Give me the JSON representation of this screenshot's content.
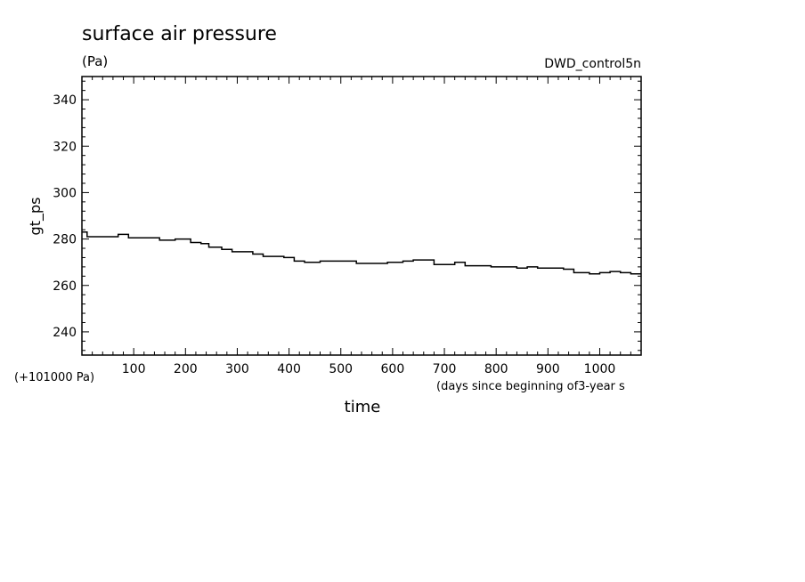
{
  "chart_data": {
    "type": "line",
    "title": "surface air pressure",
    "units": "(Pa)",
    "dataset": "DWD_control5n",
    "ylabel": "gt_ps",
    "xlabel": "time",
    "x_units": "(days since beginning of3-year s",
    "y_offset_label": "(+101000 Pa)",
    "xlim": [
      0,
      1080
    ],
    "ylim": [
      230,
      350
    ],
    "x_ticks": [
      100,
      200,
      300,
      400,
      500,
      600,
      700,
      800,
      900,
      1000
    ],
    "y_ticks": [
      240,
      260,
      280,
      300,
      320,
      340
    ],
    "grid": false,
    "series": [
      {
        "x": [
          0,
          10,
          60,
          70,
          90,
          140,
          150,
          180,
          210,
          230,
          245,
          270,
          290,
          330,
          350,
          390,
          410,
          430,
          460,
          530,
          570,
          590,
          620,
          640,
          680,
          700,
          720,
          740,
          760,
          790,
          820,
          840,
          860,
          880,
          900,
          930,
          950,
          980,
          1000,
          1020,
          1040,
          1060,
          1080
        ],
        "y": [
          283,
          281,
          281,
          282,
          280.5,
          280.5,
          279.5,
          280,
          278.5,
          278,
          276.5,
          275.5,
          274.5,
          273.5,
          272.5,
          272,
          270.5,
          270,
          270.5,
          269.5,
          269.5,
          270,
          270.5,
          271,
          269,
          269,
          270,
          268.5,
          268.5,
          268,
          268,
          267.5,
          268,
          267.5,
          267.5,
          267,
          265.5,
          265,
          265.5,
          266,
          265.5,
          265,
          265
        ]
      }
    ]
  }
}
